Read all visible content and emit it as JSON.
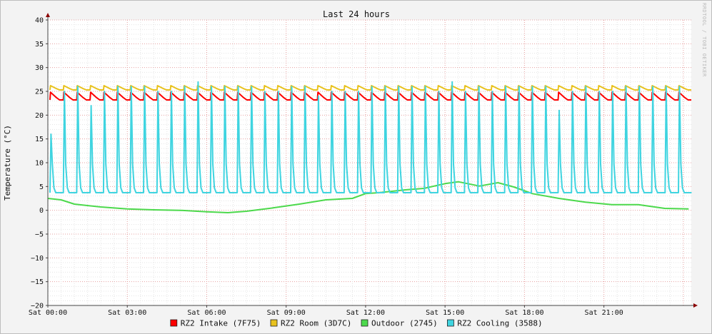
{
  "chart_data": {
    "type": "line",
    "title": "Last 24 hours",
    "ylabel": "Temperature (°C)",
    "xlabel": "",
    "watermark": "RRDTOOL / TOBI OETIKER",
    "ylim": [
      -20,
      40
    ],
    "yticks": [
      40,
      35,
      30,
      25,
      20,
      15,
      10,
      5,
      0,
      -5,
      -10,
      -15,
      -20
    ],
    "x_range_hours": [
      0,
      24.3
    ],
    "xticks": [
      {
        "h": 0,
        "label": "Sat 00:00"
      },
      {
        "h": 3,
        "label": "Sat 03:00"
      },
      {
        "h": 6,
        "label": "Sat 06:00"
      },
      {
        "h": 9,
        "label": "Sat 09:00"
      },
      {
        "h": 12,
        "label": "Sat 12:00"
      },
      {
        "h": 15,
        "label": "Sat 15:00"
      },
      {
        "h": 18,
        "label": "Sat 18:00"
      },
      {
        "h": 21,
        "label": "Sat 21:00"
      }
    ],
    "grid": true,
    "legend_position": "bottom",
    "cycle_period_hours": 0.505,
    "series": [
      {
        "name": "RZ2 Intake (7F75)",
        "color": "#ff0000",
        "pattern": "cyclic",
        "base": 23.2,
        "peak": 24.8
      },
      {
        "name": "RZ2 Room (3D7C)",
        "color": "#e8c21e",
        "pattern": "cyclic",
        "base": 25.3,
        "peak": 26.2
      },
      {
        "name": "Outdoor (2745)",
        "color": "#4cd94c",
        "pattern": "trend",
        "x": [
          0,
          0.5,
          1,
          2,
          3,
          4,
          5,
          6,
          6.8,
          7.5,
          8.5,
          9.5,
          10.5,
          11.5,
          12,
          12.5,
          13.5,
          14.2,
          15,
          15.5,
          16.3,
          17,
          17.6,
          18.3,
          19.3,
          20.3,
          21.3,
          22.3,
          23.3,
          24.2
        ],
        "y": [
          2.5,
          2.2,
          1.3,
          0.7,
          0.3,
          0.1,
          0.0,
          -0.3,
          -0.5,
          -0.2,
          0.5,
          1.3,
          2.2,
          2.5,
          3.5,
          3.7,
          4.3,
          4.6,
          5.6,
          6.0,
          5.1,
          5.8,
          4.9,
          3.5,
          2.5,
          1.7,
          1.2,
          1.2,
          0.4,
          0.3
        ]
      },
      {
        "name": "RZ2 Cooling (3588)",
        "color": "#3fd4e0",
        "pattern": "spikes",
        "base": 3.7,
        "peaks": [
          16,
          25,
          26,
          22,
          25,
          26,
          26,
          26,
          25,
          25,
          26,
          27,
          26,
          26,
          26,
          26,
          25,
          25,
          26,
          26,
          24,
          25,
          25,
          25,
          26,
          26,
          26,
          26,
          26,
          25,
          27,
          25,
          26,
          25,
          26,
          26,
          26,
          26,
          21,
          25,
          26,
          25,
          25,
          26,
          26,
          26,
          26,
          26
        ]
      }
    ]
  },
  "legend": [
    {
      "label": "RZ2 Intake (7F75)",
      "color": "#ff0000"
    },
    {
      "label": "RZ2 Room (3D7C)",
      "color": "#e8c21e"
    },
    {
      "label": "Outdoor (2745)",
      "color": "#4cd94c"
    },
    {
      "label": "RZ2 Cooling (3588)",
      "color": "#3fd4e0"
    }
  ]
}
